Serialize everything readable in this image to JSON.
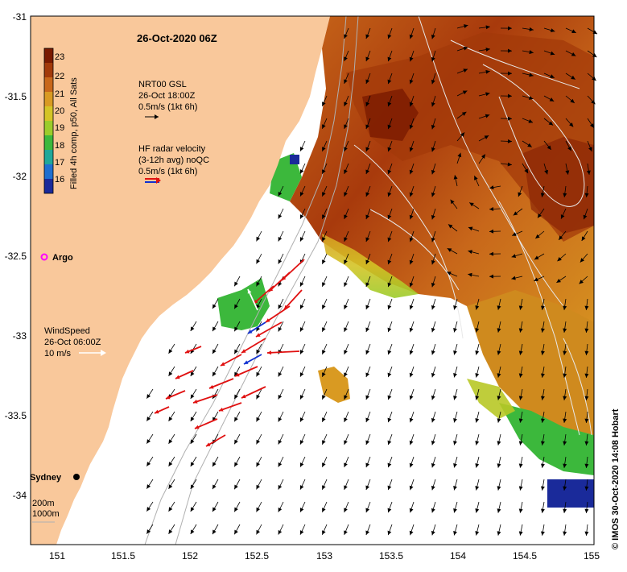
{
  "map": {
    "title": "26-Oct-2020 06Z",
    "x_ticks": [
      "151",
      "151.5",
      "152",
      "152.5",
      "153",
      "153.5",
      "154",
      "154.5",
      "155"
    ],
    "y_ticks": [
      "-31",
      "-31.5",
      "-32",
      "-32.5",
      "-33",
      "-33.5",
      "-34"
    ],
    "colorbar": {
      "label": "Filled 4h comp, p50, All Sats",
      "ticks": [
        "23",
        "22",
        "21",
        "20",
        "19",
        "18",
        "17",
        "16"
      ],
      "colors": [
        "#7a1a00",
        "#a33a0a",
        "#c8671a",
        "#d99a22",
        "#d4c426",
        "#9ccc2a",
        "#3cb83c",
        "#1fa89a",
        "#1f6fd0",
        "#1a2a9a"
      ]
    },
    "legend": {
      "gsl_line1": "NRT00 GSL",
      "gsl_line2": "26-Oct 18:00Z",
      "gsl_line3": "0.5m/s (1kt 6h)",
      "radar_line1": "HF radar velocity",
      "radar_line2": "(3-12h avg) noQC",
      "radar_line3": "0.5m/s (1kt 6h)",
      "argo_label": "Argo",
      "wind_line1": "WindSpeed",
      "wind_line2": "26-Oct 06:00Z",
      "wind_line3": "10 m/s",
      "city_label": "Sydney",
      "depth1": "200m",
      "depth2": "1000m"
    },
    "credit": "©  IMOS 30-Oct-2020 14:08 Hobart",
    "colors": {
      "land": "#f9c89b",
      "ocean_no_data": "#ffffff",
      "radar_vector": "#e01010",
      "radar_vector_alt": "#1030d0",
      "argo": "#ff00ff",
      "contour": "#e8e8e8"
    }
  }
}
